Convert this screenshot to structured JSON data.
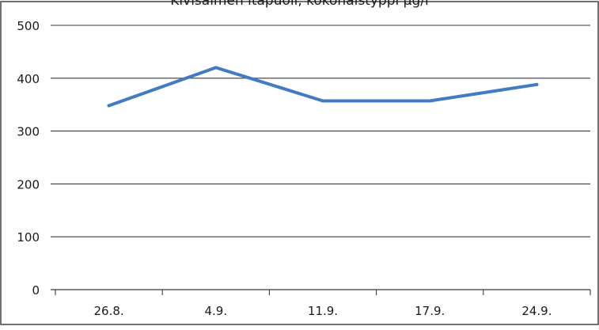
{
  "chart_data": {
    "type": "line",
    "title": "Kivisalmen itäpuoli, kokonaistyppi µg/l",
    "xlabel": "",
    "ylabel": "",
    "categories": [
      "26.8.",
      "4.9.",
      "11.9.",
      "17.9.",
      "24.9."
    ],
    "series": [
      {
        "values": [
          348,
          420,
          357,
          357,
          388
        ],
        "color": "#3f7cc4"
      }
    ],
    "ylim": [
      0,
      500
    ],
    "yticks": [
      0,
      100,
      200,
      300,
      400,
      500
    ],
    "grid": "horizontal",
    "legend": "none"
  }
}
